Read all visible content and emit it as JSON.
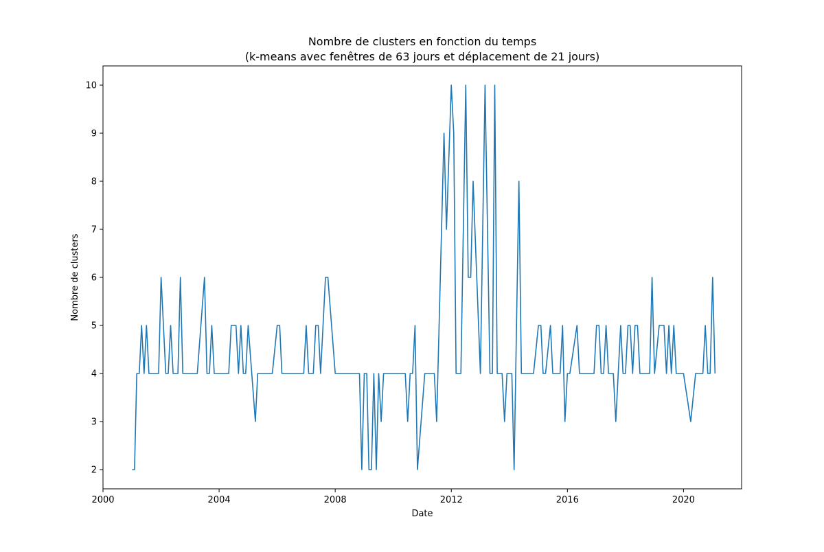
{
  "chart_data": {
    "type": "line",
    "title_line1": "Nombre de clusters en fonction du temps",
    "title_line2": "(k-means avec fenêtres de 63 jours et déplacement de 21 jours)",
    "xlabel": "Date",
    "ylabel": "Nombre de clusters",
    "xlim": [
      "2000-01-01",
      "2022-01-01"
    ],
    "ylim": [
      1.6,
      10.4
    ],
    "x_ticks": [
      "2000",
      "2004",
      "2008",
      "2012",
      "2016",
      "2020"
    ],
    "y_ticks": [
      2,
      3,
      4,
      5,
      6,
      7,
      8,
      9,
      10
    ],
    "grid": false,
    "series_color": "#1f77b4",
    "series": [
      {
        "points": [
          [
            "2001-01-01",
            2
          ],
          [
            "2001-02-01",
            2
          ],
          [
            "2001-03-01",
            4
          ],
          [
            "2001-04-01",
            4
          ],
          [
            "2001-05-01",
            5
          ],
          [
            "2001-06-01",
            4
          ],
          [
            "2001-07-01",
            5
          ],
          [
            "2001-08-01",
            4
          ],
          [
            "2001-10-01",
            4
          ],
          [
            "2001-12-01",
            4
          ],
          [
            "2002-01-01",
            6
          ],
          [
            "2002-03-01",
            4
          ],
          [
            "2002-04-01",
            4
          ],
          [
            "2002-05-01",
            5
          ],
          [
            "2002-06-01",
            4
          ],
          [
            "2002-08-01",
            4
          ],
          [
            "2002-09-01",
            6
          ],
          [
            "2002-10-01",
            4
          ],
          [
            "2003-01-01",
            4
          ],
          [
            "2003-04-01",
            4
          ],
          [
            "2003-07-01",
            6
          ],
          [
            "2003-08-01",
            4
          ],
          [
            "2003-09-01",
            4
          ],
          [
            "2003-10-01",
            5
          ],
          [
            "2003-11-01",
            4
          ],
          [
            "2004-03-01",
            4
          ],
          [
            "2004-05-01",
            4
          ],
          [
            "2004-06-01",
            5
          ],
          [
            "2004-08-01",
            5
          ],
          [
            "2004-09-01",
            4
          ],
          [
            "2004-10-01",
            5
          ],
          [
            "2004-11-01",
            4
          ],
          [
            "2004-12-01",
            4
          ],
          [
            "2005-01-01",
            5
          ],
          [
            "2005-04-01",
            3
          ],
          [
            "2005-05-01",
            4
          ],
          [
            "2005-09-01",
            4
          ],
          [
            "2005-11-01",
            4
          ],
          [
            "2006-01-01",
            5
          ],
          [
            "2006-02-01",
            5
          ],
          [
            "2006-03-01",
            4
          ],
          [
            "2006-06-01",
            4
          ],
          [
            "2006-12-01",
            4
          ],
          [
            "2007-01-01",
            5
          ],
          [
            "2007-02-01",
            4
          ],
          [
            "2007-03-01",
            4
          ],
          [
            "2007-04-01",
            4
          ],
          [
            "2007-05-01",
            5
          ],
          [
            "2007-06-01",
            5
          ],
          [
            "2007-07-01",
            4
          ],
          [
            "2007-09-01",
            6
          ],
          [
            "2007-10-01",
            6
          ],
          [
            "2008-01-01",
            4
          ],
          [
            "2008-06-01",
            4
          ],
          [
            "2008-10-01",
            4
          ],
          [
            "2008-11-01",
            4
          ],
          [
            "2008-12-01",
            2
          ],
          [
            "2009-01-01",
            4
          ],
          [
            "2009-02-01",
            4
          ],
          [
            "2009-03-01",
            2
          ],
          [
            "2009-04-01",
            2
          ],
          [
            "2009-05-01",
            4
          ],
          [
            "2009-06-01",
            2
          ],
          [
            "2009-07-01",
            4
          ],
          [
            "2009-08-01",
            3
          ],
          [
            "2009-09-01",
            4
          ],
          [
            "2010-03-01",
            4
          ],
          [
            "2010-06-01",
            4
          ],
          [
            "2010-07-01",
            3
          ],
          [
            "2010-08-01",
            4
          ],
          [
            "2010-09-01",
            4
          ],
          [
            "2010-10-01",
            5
          ],
          [
            "2010-11-01",
            2
          ],
          [
            "2011-02-01",
            4
          ],
          [
            "2011-04-01",
            4
          ],
          [
            "2011-05-01",
            4
          ],
          [
            "2011-06-01",
            4
          ],
          [
            "2011-07-01",
            3
          ],
          [
            "2011-10-01",
            9
          ],
          [
            "2011-11-01",
            7
          ],
          [
            "2012-01-01",
            10
          ],
          [
            "2012-02-01",
            9
          ],
          [
            "2012-03-01",
            4
          ],
          [
            "2012-05-01",
            4
          ],
          [
            "2012-07-01",
            10
          ],
          [
            "2012-08-01",
            6
          ],
          [
            "2012-09-01",
            6
          ],
          [
            "2012-10-01",
            8
          ],
          [
            "2013-01-01",
            4
          ],
          [
            "2013-03-01",
            10
          ],
          [
            "2013-05-01",
            4
          ],
          [
            "2013-06-01",
            4
          ],
          [
            "2013-07-01",
            10
          ],
          [
            "2013-08-01",
            4
          ],
          [
            "2013-10-01",
            4
          ],
          [
            "2013-11-01",
            3
          ],
          [
            "2013-12-01",
            4
          ],
          [
            "2014-01-01",
            4
          ],
          [
            "2014-02-01",
            4
          ],
          [
            "2014-03-01",
            2
          ],
          [
            "2014-05-01",
            8
          ],
          [
            "2014-06-01",
            4
          ],
          [
            "2014-09-01",
            4
          ],
          [
            "2014-11-01",
            4
          ],
          [
            "2015-01-01",
            5
          ],
          [
            "2015-02-01",
            5
          ],
          [
            "2015-03-01",
            4
          ],
          [
            "2015-04-01",
            4
          ],
          [
            "2015-06-01",
            5
          ],
          [
            "2015-07-01",
            4
          ],
          [
            "2015-08-01",
            4
          ],
          [
            "2015-10-01",
            4
          ],
          [
            "2015-11-01",
            5
          ],
          [
            "2015-12-01",
            3
          ],
          [
            "2016-01-01",
            4
          ],
          [
            "2016-02-01",
            4
          ],
          [
            "2016-05-01",
            5
          ],
          [
            "2016-06-01",
            4
          ],
          [
            "2016-09-01",
            4
          ],
          [
            "2016-10-01",
            4
          ],
          [
            "2016-12-01",
            4
          ],
          [
            "2017-01-01",
            5
          ],
          [
            "2017-02-01",
            5
          ],
          [
            "2017-03-01",
            4
          ],
          [
            "2017-04-01",
            4
          ],
          [
            "2017-05-01",
            5
          ],
          [
            "2017-06-01",
            4
          ],
          [
            "2017-08-01",
            4
          ],
          [
            "2017-09-01",
            3
          ],
          [
            "2017-10-01",
            4
          ],
          [
            "2017-11-01",
            5
          ],
          [
            "2017-12-01",
            4
          ],
          [
            "2018-01-01",
            4
          ],
          [
            "2018-02-01",
            5
          ],
          [
            "2018-03-01",
            5
          ],
          [
            "2018-04-01",
            4
          ],
          [
            "2018-05-01",
            5
          ],
          [
            "2018-06-01",
            5
          ],
          [
            "2018-07-01",
            4
          ],
          [
            "2018-11-01",
            4
          ],
          [
            "2018-12-01",
            6
          ],
          [
            "2019-01-01",
            4
          ],
          [
            "2019-03-01",
            5
          ],
          [
            "2019-05-01",
            5
          ],
          [
            "2019-06-01",
            4
          ],
          [
            "2019-07-01",
            5
          ],
          [
            "2019-08-01",
            4
          ],
          [
            "2019-09-01",
            5
          ],
          [
            "2019-10-01",
            4
          ],
          [
            "2020-01-01",
            4
          ],
          [
            "2020-04-01",
            3
          ],
          [
            "2020-06-01",
            4
          ],
          [
            "2020-09-01",
            4
          ],
          [
            "2020-10-01",
            5
          ],
          [
            "2020-11-01",
            4
          ],
          [
            "2020-12-01",
            4
          ],
          [
            "2021-01-01",
            6
          ],
          [
            "2021-02-01",
            4
          ]
        ]
      }
    ]
  }
}
